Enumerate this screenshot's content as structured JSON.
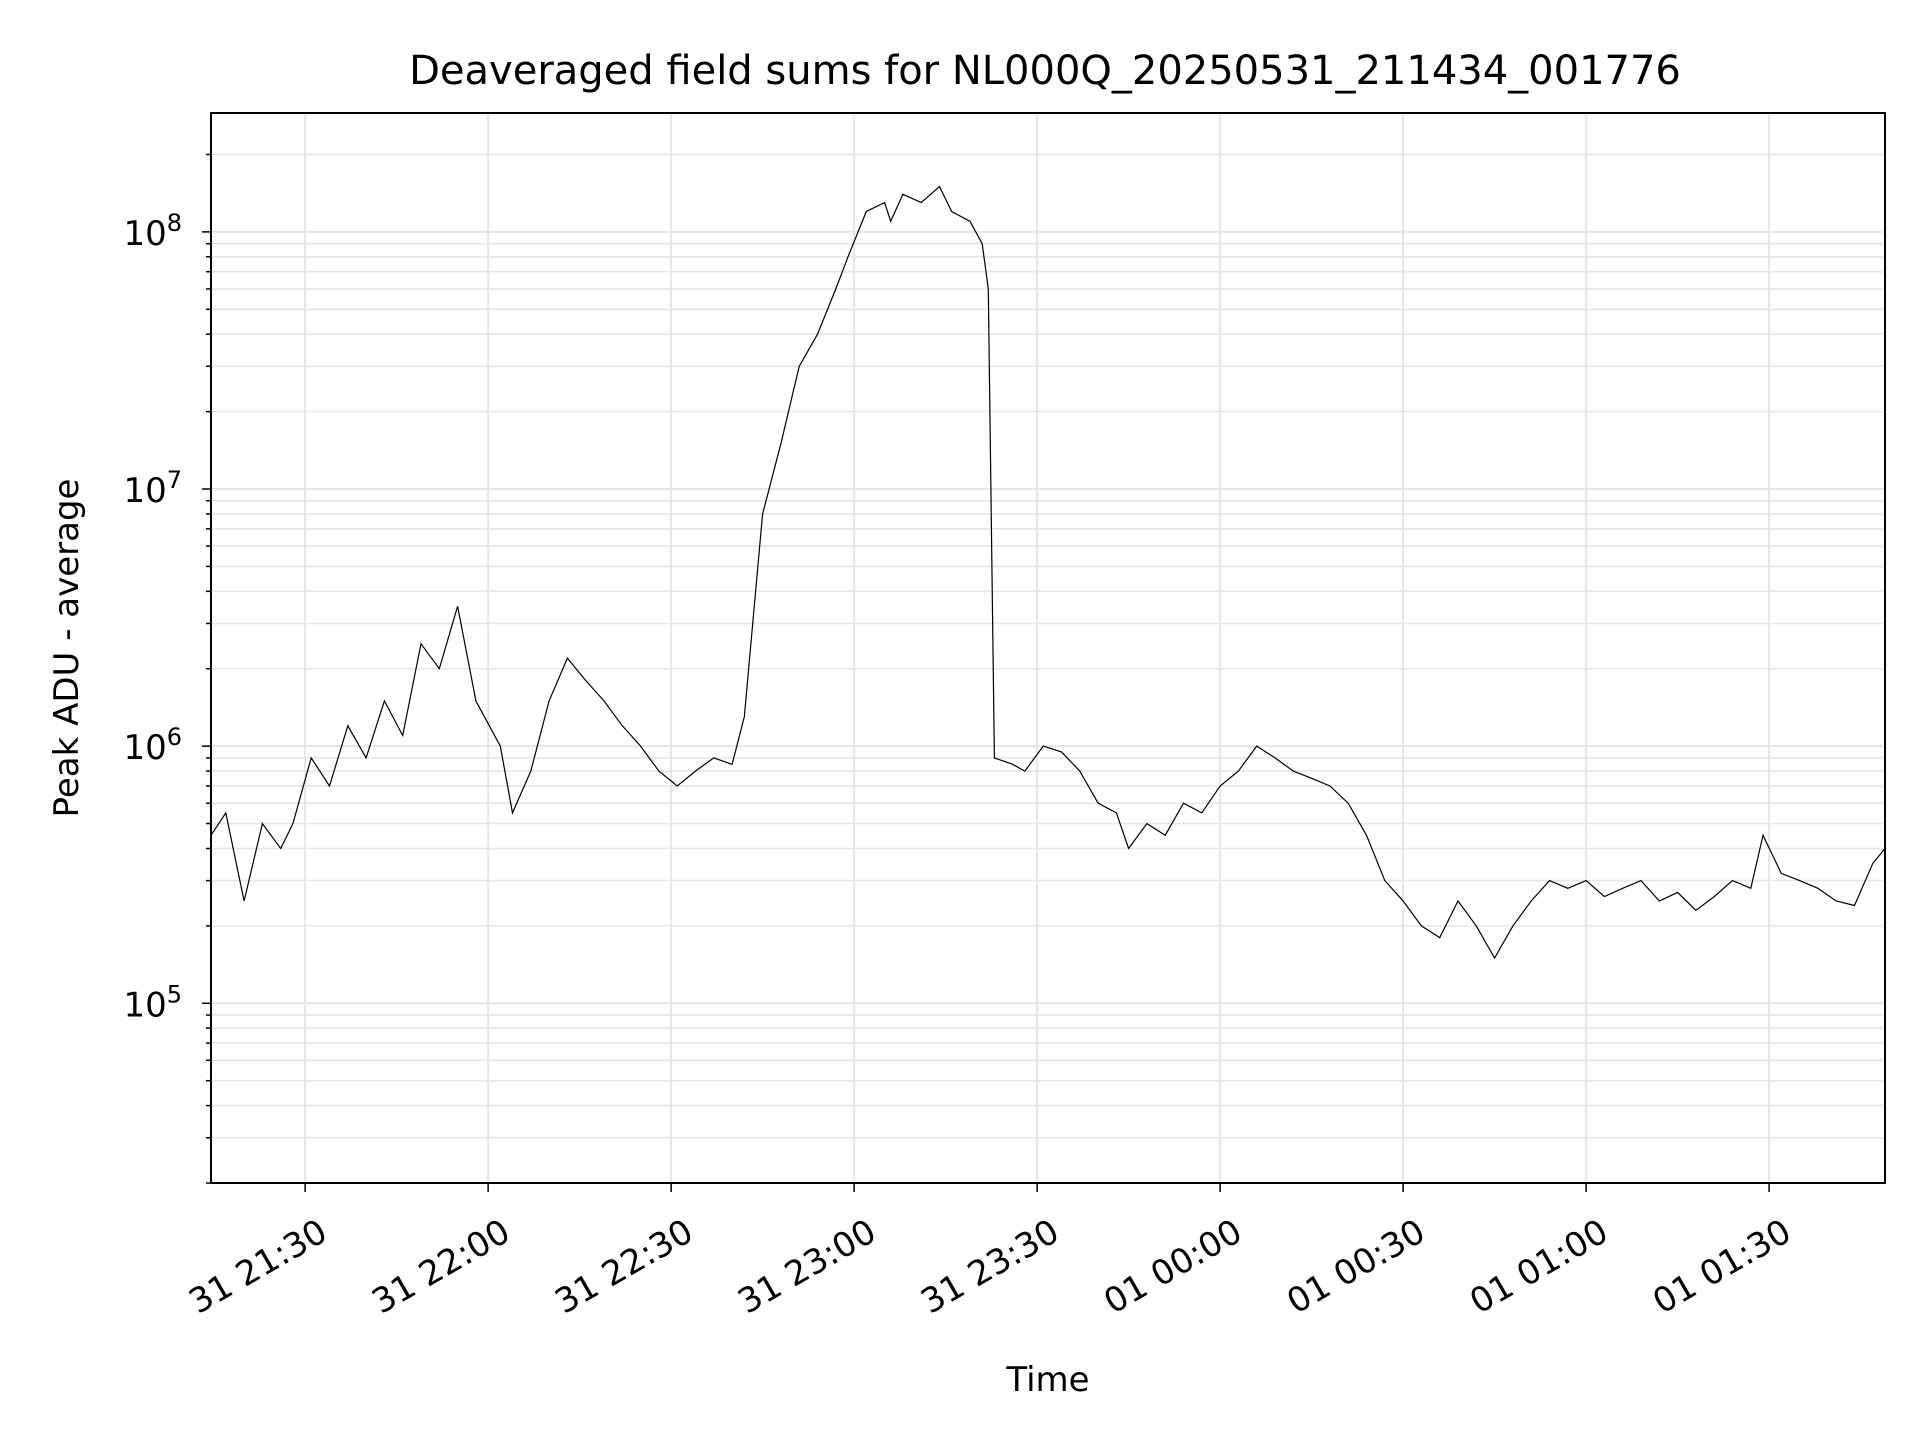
{
  "chart_data": {
    "type": "line",
    "title": "Deaveraged field sums for NL000Q_20250531_211434_001776",
    "xlabel": "Time",
    "ylabel": "Peak ADU - average",
    "xlim": [
      "2025-05-31 21:14:34",
      "2025-06-01 01:49:00"
    ],
    "ylim": [
      20000,
      290000000
    ],
    "yscale": "log",
    "grid": true,
    "grid_minor_y": true,
    "line_color": "#000000",
    "x_ticks": [
      {
        "t": "2025-05-31 21:30",
        "label": "31 21:30"
      },
      {
        "t": "2025-05-31 22:00",
        "label": "31 22:00"
      },
      {
        "t": "2025-05-31 22:30",
        "label": "31 22:30"
      },
      {
        "t": "2025-05-31 23:00",
        "label": "31 23:00"
      },
      {
        "t": "2025-05-31 23:30",
        "label": "31 23:30"
      },
      {
        "t": "2025-06-01 00:00",
        "label": "01 00:00"
      },
      {
        "t": "2025-06-01 00:30",
        "label": "01 00:30"
      },
      {
        "t": "2025-06-01 01:00",
        "label": "01 01:00"
      },
      {
        "t": "2025-06-01 01:30",
        "label": "01 01:30"
      }
    ],
    "y_ticks": [
      {
        "value": 100000,
        "label": "10",
        "exp": "5"
      },
      {
        "value": 1000000,
        "label": "10",
        "exp": "6"
      },
      {
        "value": 10000000,
        "label": "10",
        "exp": "7"
      },
      {
        "value": 100000000,
        "label": "10",
        "exp": "8"
      }
    ],
    "series": [
      {
        "x": [
          "2025-05-31 21:14:34",
          "2025-05-31 21:17:00",
          "2025-05-31 21:20:00",
          "2025-05-31 21:23:00",
          "2025-05-31 21:26:00",
          "2025-05-31 21:28:00",
          "2025-05-31 21:31:00",
          "2025-05-31 21:34:00",
          "2025-05-31 21:37:00",
          "2025-05-31 21:40:00",
          "2025-05-31 21:43:00",
          "2025-05-31 21:46:00",
          "2025-05-31 21:49:00",
          "2025-05-31 21:52:00",
          "2025-05-31 21:55:00",
          "2025-05-31 21:58:00",
          "2025-05-31 22:02:00",
          "2025-05-31 22:04:00",
          "2025-05-31 22:07:00",
          "2025-05-31 22:10:00",
          "2025-05-31 22:13:00",
          "2025-05-31 22:16:00",
          "2025-05-31 22:19:00",
          "2025-05-31 22:22:00",
          "2025-05-31 22:25:00",
          "2025-05-31 22:28:00",
          "2025-05-31 22:31:00",
          "2025-05-31 22:34:00",
          "2025-05-31 22:37:00",
          "2025-05-31 22:40:00",
          "2025-05-31 22:42:00",
          "2025-05-31 22:45:00",
          "2025-05-31 22:48:00",
          "2025-05-31 22:51:00",
          "2025-05-31 22:54:00",
          "2025-05-31 22:57:00",
          "2025-05-31 22:59:00",
          "2025-05-31 23:02:00",
          "2025-05-31 23:05:00",
          "2025-05-31 23:06:00",
          "2025-05-31 23:08:00",
          "2025-05-31 23:11:00",
          "2025-05-31 23:14:00",
          "2025-05-31 23:16:00",
          "2025-05-31 23:19:00",
          "2025-05-31 23:21:00",
          "2025-05-31 23:22:00",
          "2025-05-31 23:23:00",
          "2025-05-31 23:26:00",
          "2025-05-31 23:28:00",
          "2025-05-31 23:31:00",
          "2025-05-31 23:34:00",
          "2025-05-31 23:37:00",
          "2025-05-31 23:40:00",
          "2025-05-31 23:43:00",
          "2025-05-31 23:45:00",
          "2025-05-31 23:48:00",
          "2025-05-31 23:51:00",
          "2025-05-31 23:54:00",
          "2025-05-31 23:57:00",
          "2025-06-01 00:00:00",
          "2025-06-01 00:03:00",
          "2025-06-01 00:06:00",
          "2025-06-01 00:09:00",
          "2025-06-01 00:12:00",
          "2025-06-01 00:15:00",
          "2025-06-01 00:18:00",
          "2025-06-01 00:21:00",
          "2025-06-01 00:24:00",
          "2025-06-01 00:27:00",
          "2025-06-01 00:30:00",
          "2025-06-01 00:33:00",
          "2025-06-01 00:36:00",
          "2025-06-01 00:39:00",
          "2025-06-01 00:42:00",
          "2025-06-01 00:45:00",
          "2025-06-01 00:48:00",
          "2025-06-01 00:51:00",
          "2025-06-01 00:54:00",
          "2025-06-01 00:57:00",
          "2025-06-01 01:00:00",
          "2025-06-01 01:03:00",
          "2025-06-01 01:06:00",
          "2025-06-01 01:09:00",
          "2025-06-01 01:12:00",
          "2025-06-01 01:15:00",
          "2025-06-01 01:18:00",
          "2025-06-01 01:21:00",
          "2025-06-01 01:24:00",
          "2025-06-01 01:27:00",
          "2025-06-01 01:29:00",
          "2025-06-01 01:32:00",
          "2025-06-01 01:35:00",
          "2025-06-01 01:38:00",
          "2025-06-01 01:41:00",
          "2025-06-01 01:44:00",
          "2025-06-01 01:47:00",
          "2025-06-01 01:49:00"
        ],
        "y": [
          450000,
          550000,
          250000,
          500000,
          400000,
          500000,
          900000,
          700000,
          1200000,
          900000,
          1500000,
          1100000,
          2500000,
          2000000,
          3500000,
          1500000,
          1000000,
          550000,
          800000,
          1500000,
          2200000,
          1800000,
          1500000,
          1200000,
          1000000,
          800000,
          700000,
          800000,
          900000,
          850000,
          1300000,
          8000000,
          15000000,
          30000000,
          40000000,
          60000000,
          80000000,
          120000000,
          130000000,
          110000000,
          140000000,
          130000000,
          150000000,
          120000000,
          110000000,
          90000000,
          60000000,
          900000,
          850000,
          800000,
          1000000,
          950000,
          800000,
          600000,
          550000,
          400000,
          500000,
          450000,
          600000,
          550000,
          700000,
          800000,
          1000000,
          900000,
          800000,
          750000,
          700000,
          600000,
          450000,
          300000,
          250000,
          200000,
          180000,
          250000,
          200000,
          150000,
          200000,
          250000,
          300000,
          280000,
          300000,
          260000,
          280000,
          300000,
          250000,
          270000,
          230000,
          260000,
          300000,
          280000,
          450000,
          320000,
          300000,
          280000,
          250000,
          240000,
          350000,
          400000
        ]
      }
    ]
  }
}
